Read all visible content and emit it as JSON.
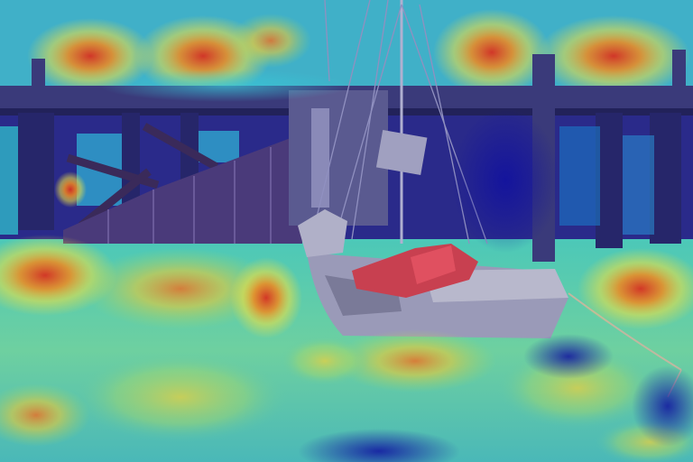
{
  "image": {
    "kind": "photo-with-saliency-heatmap-overlay",
    "subject": "sailboat-moored-beside-wooden-pier",
    "overlay_colormap": "jet",
    "colors": {
      "heat_low": "#1a1aa8",
      "heat_mid_low": "#2fb8c8",
      "heat_mid": "#8fd67a",
      "heat_mid_high": "#f0c830",
      "heat_high": "#d83020",
      "boat_tarp_red": "#c84050",
      "boat_hull": "#a9a9b8",
      "pier_dark": "#2a2a55"
    }
  }
}
